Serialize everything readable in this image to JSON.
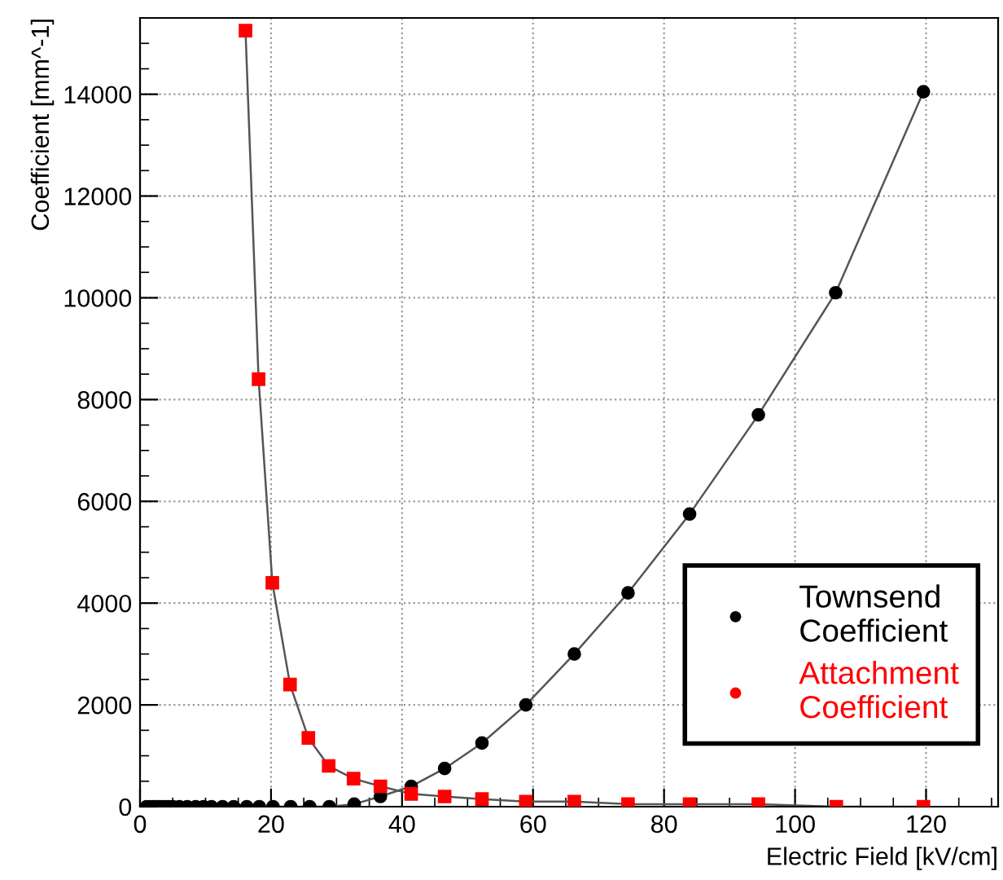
{
  "chart_data": {
    "type": "line",
    "xlabel": "Electric Field [kV/cm]",
    "ylabel": "Coefficient [mm^-1]",
    "xlim": [
      0,
      131
    ],
    "ylim": [
      0,
      15500
    ],
    "xticks": [
      0,
      20,
      40,
      60,
      80,
      100,
      120
    ],
    "yticks": [
      0,
      2000,
      4000,
      6000,
      8000,
      10000,
      12000,
      14000
    ],
    "grid": true,
    "legend": "bottom right",
    "series": [
      {
        "name": "Townsend\nCoefficient",
        "color": "#000000",
        "marker": "circle",
        "x": [
          1,
          1.5,
          2,
          2.5,
          3,
          3.5,
          4,
          4.5,
          5,
          6,
          7.2,
          8.5,
          9.7,
          10.9,
          12.6,
          14.3,
          16.3,
          18.2,
          20.3,
          23,
          25.9,
          28.9,
          32.7,
          36.7,
          41.4,
          46.5,
          52.2,
          58.9,
          66.3,
          74.5,
          83.9,
          94.4,
          106.2,
          119.6
        ],
        "values": [
          0,
          0,
          0,
          0,
          0,
          0,
          0,
          0,
          0,
          0,
          0,
          0,
          0,
          0,
          0,
          0,
          0,
          0,
          0,
          0,
          0,
          0,
          50,
          200,
          400,
          750,
          1250,
          2000,
          3000,
          4200,
          5750,
          7700,
          10100,
          14050
        ]
      },
      {
        "name": "Attachment\nCoefficient",
        "color": "#ff0000",
        "marker": "square",
        "x": [
          16.1,
          18.1,
          20.2,
          22.9,
          25.7,
          28.8,
          32.6,
          36.7,
          41.4,
          46.5,
          52.2,
          58.9,
          66.3,
          74.5,
          83.9,
          94.4,
          106.3,
          119.6
        ],
        "values": [
          15250,
          8400,
          4400,
          2400,
          1350,
          800,
          550,
          400,
          250,
          200,
          150,
          100,
          100,
          50,
          50,
          50,
          0,
          0
        ]
      }
    ]
  }
}
